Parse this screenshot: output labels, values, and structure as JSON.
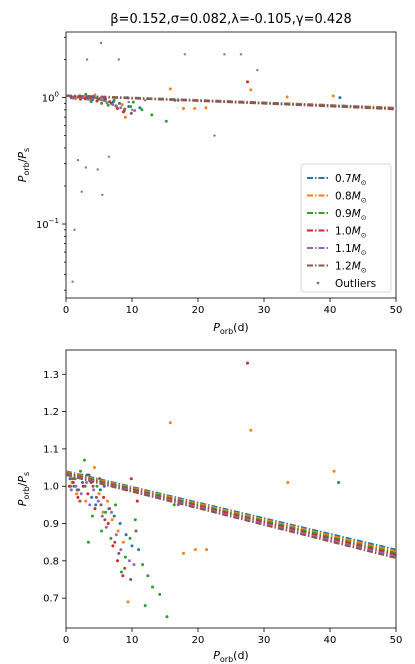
{
  "chart_data": [
    {
      "type": "line",
      "title": "β=0.152,σ=0.082,λ=-0.105,γ=0.428",
      "xlabel_main": "P",
      "xlabel_sub": "orb",
      "xlabel_unit": "(d)",
      "ylabel_num": "P",
      "ylabel_num_sub": "orb",
      "ylabel_sep": "/",
      "ylabel_den": "P",
      "ylabel_den_sub": "s",
      "xlim": [
        0,
        50
      ],
      "ylim": [
        0.026,
        3.3
      ],
      "yscale": "log",
      "grid": false,
      "legend_placement": "lower-right",
      "xticks": [
        0,
        10,
        20,
        30,
        40,
        50
      ],
      "yticks": [
        {
          "value": 0.1,
          "base": "10",
          "exp": "−1"
        },
        {
          "value": 1.0,
          "base": "10",
          "exp": "0"
        }
      ],
      "series": [
        {
          "name": "0.7",
          "unit": "M",
          "unit_sub": "⊙",
          "color": "#1f77b4",
          "style": "dashdot",
          "curve": {
            "a": 1.04,
            "b": 0.0042
          }
        },
        {
          "name": "0.8",
          "unit": "M",
          "unit_sub": "⊙",
          "color": "#ff7f0e",
          "style": "dashdot",
          "curve": {
            "a": 1.038,
            "b": 0.00425
          }
        },
        {
          "name": "0.9",
          "unit": "M",
          "unit_sub": "⊙",
          "color": "#2ca02c",
          "style": "dashdot",
          "curve": {
            "a": 1.036,
            "b": 0.0043
          }
        },
        {
          "name": "1.0",
          "unit": "M",
          "unit_sub": "⊙",
          "color": "#d62728",
          "style": "dashdot",
          "curve": {
            "a": 1.034,
            "b": 0.00435
          }
        },
        {
          "name": "1.1",
          "unit": "M",
          "unit_sub": "⊙",
          "color": "#9467bd",
          "style": "dashdot",
          "curve": {
            "a": 1.032,
            "b": 0.0044
          }
        },
        {
          "name": "1.2",
          "unit": "M",
          "unit_sub": "⊙",
          "color": "#8c564b",
          "style": "dashdot",
          "curve": {
            "a": 1.03,
            "b": 0.00445
          }
        },
        {
          "name": "Outliers",
          "color": "#7f7f7f",
          "style": "points",
          "points": [
            [
              1.0,
              0.035
            ],
            [
              1.3,
              0.09
            ],
            [
              1.8,
              0.32
            ],
            [
              2.4,
              0.18
            ],
            [
              3.0,
              0.28
            ],
            [
              3.2,
              2.0
            ],
            [
              4.8,
              0.27
            ],
            [
              5.3,
              2.7
            ],
            [
              5.5,
              0.17
            ],
            [
              6.5,
              0.34
            ],
            [
              7.5,
              0.85
            ],
            [
              8.0,
              2.0
            ],
            [
              10.0,
              0.8
            ],
            [
              18.0,
              2.2
            ],
            [
              22.5,
              0.5
            ],
            [
              24.0,
              2.2
            ],
            [
              26.5,
              2.2
            ],
            [
              29.0,
              1.65
            ],
            [
              12.0,
              0.95
            ],
            [
              9.5,
              0.92
            ]
          ]
        }
      ],
      "scatter": [
        {
          "color": "#1f77b4",
          "points": [
            [
              1.0,
              1.01
            ],
            [
              2.3,
              0.99
            ],
            [
              3.4,
              1.02
            ],
            [
              4.0,
              0.96
            ],
            [
              5.1,
              0.98
            ],
            [
              6.0,
              0.97
            ],
            [
              7.2,
              0.93
            ],
            [
              8.1,
              0.9
            ],
            [
              9.5,
              0.85
            ],
            [
              11.2,
              0.83
            ],
            [
              41.5,
              1.0
            ]
          ]
        },
        {
          "color": "#ff7f0e",
          "points": [
            [
              1.5,
              0.98
            ],
            [
              2.7,
              1.02
            ],
            [
              3.6,
              0.97
            ],
            [
              4.4,
              1.05
            ],
            [
              5.6,
              0.95
            ],
            [
              6.7,
              0.92
            ],
            [
              8.5,
              0.88
            ],
            [
              9.0,
              0.7
            ],
            [
              15.8,
              1.17
            ],
            [
              17.8,
              0.82
            ],
            [
              19.5,
              0.82
            ],
            [
              21.2,
              0.83
            ],
            [
              28.0,
              1.15
            ],
            [
              33.5,
              1.01
            ],
            [
              40.5,
              1.03
            ]
          ]
        },
        {
          "color": "#2ca02c",
          "points": [
            [
              1.2,
              1.0
            ],
            [
              2.1,
              1.03
            ],
            [
              3.0,
              1.06
            ],
            [
              3.8,
              0.93
            ],
            [
              4.6,
              1.0
            ],
            [
              5.4,
              0.9
            ],
            [
              6.4,
              0.87
            ],
            [
              7.3,
              0.95
            ],
            [
              8.8,
              0.78
            ],
            [
              9.8,
              0.85
            ],
            [
              10.2,
              0.92
            ],
            [
              11.5,
              0.8
            ],
            [
              13.0,
              0.73
            ],
            [
              15.2,
              0.65
            ],
            [
              16.5,
              0.95
            ]
          ]
        },
        {
          "color": "#d62728",
          "points": [
            [
              0.8,
              1.0
            ],
            [
              1.9,
              1.01
            ],
            [
              2.9,
              0.98
            ],
            [
              3.7,
              1.0
            ],
            [
              4.7,
              0.94
            ],
            [
              5.8,
              0.99
            ],
            [
              6.9,
              0.9
            ],
            [
              7.8,
              0.82
            ],
            [
              8.7,
              0.77
            ],
            [
              9.3,
              1.0
            ],
            [
              27.5,
              1.33
            ]
          ]
        },
        {
          "color": "#9467bd",
          "points": [
            [
              1.1,
              0.99
            ],
            [
              2.5,
              1.0
            ],
            [
              3.3,
              0.97
            ],
            [
              4.2,
              0.99
            ],
            [
              5.3,
              0.96
            ],
            [
              6.2,
              0.91
            ],
            [
              7.1,
              0.88
            ],
            [
              8.3,
              0.83
            ],
            [
              10.4,
              0.79
            ],
            [
              17.0,
              0.95
            ]
          ]
        },
        {
          "color": "#8c564b",
          "points": [
            [
              1.4,
              1.02
            ],
            [
              2.2,
              0.97
            ],
            [
              3.1,
              1.0
            ],
            [
              4.1,
              1.02
            ],
            [
              4.9,
              0.97
            ],
            [
              5.9,
              0.95
            ],
            [
              6.6,
              0.93
            ],
            [
              7.6,
              0.86
            ],
            [
              8.9,
              0.81
            ],
            [
              9.9,
              0.75
            ]
          ]
        }
      ]
    },
    {
      "type": "line",
      "xlabel_main": "P",
      "xlabel_sub": "orb",
      "xlabel_unit": "(d)",
      "ylabel_num": "P",
      "ylabel_num_sub": "orb",
      "ylabel_sep": "/",
      "ylabel_den": "P",
      "ylabel_den_sub": "s",
      "xlim": [
        0,
        50
      ],
      "ylim": [
        0.62,
        1.365
      ],
      "yscale": "linear",
      "grid": false,
      "xticks": [
        0,
        10,
        20,
        30,
        40,
        50
      ],
      "yticks": [
        0.7,
        0.8,
        0.9,
        1.0,
        1.1,
        1.2,
        1.3
      ],
      "series": [
        {
          "name": "0.7",
          "color": "#1f77b4",
          "style": "dashdot",
          "curve": {
            "a": 1.04,
            "b": 0.0042
          }
        },
        {
          "name": "0.8",
          "color": "#ff7f0e",
          "style": "dashdot",
          "curve": {
            "a": 1.038,
            "b": 0.00425
          }
        },
        {
          "name": "0.9",
          "color": "#2ca02c",
          "style": "dashdot",
          "curve": {
            "a": 1.036,
            "b": 0.0043
          }
        },
        {
          "name": "1.0",
          "color": "#d62728",
          "style": "dashdot",
          "curve": {
            "a": 1.034,
            "b": 0.00435
          }
        },
        {
          "name": "1.1",
          "color": "#9467bd",
          "style": "dashdot",
          "curve": {
            "a": 1.032,
            "b": 0.0044
          }
        },
        {
          "name": "1.2",
          "color": "#8c564b",
          "style": "dashdot",
          "curve": {
            "a": 1.03,
            "b": 0.00445
          }
        }
      ],
      "scatter": [
        {
          "color": "#1f77b4",
          "points": [
            [
              0.6,
              1.02
            ],
            [
              1.2,
              1.0
            ],
            [
              1.9,
              0.99
            ],
            [
              2.5,
              1.01
            ],
            [
              3.2,
              1.03
            ],
            [
              3.9,
              0.97
            ],
            [
              4.5,
              0.95
            ],
            [
              5.2,
              0.99
            ],
            [
              5.8,
              1.0
            ],
            [
              6.5,
              0.94
            ],
            [
              7.3,
              0.92
            ],
            [
              8.2,
              0.9
            ],
            [
              9.1,
              0.87
            ],
            [
              10.0,
              0.84
            ],
            [
              11.0,
              0.83
            ],
            [
              41.3,
              1.01
            ]
          ]
        },
        {
          "color": "#ff7f0e",
          "points": [
            [
              0.9,
              1.01
            ],
            [
              1.6,
              0.98
            ],
            [
              2.4,
              1.03
            ],
            [
              3.0,
              0.96
            ],
            [
              3.7,
              1.02
            ],
            [
              4.3,
              1.05
            ],
            [
              5.0,
              0.98
            ],
            [
              5.6,
              0.93
            ],
            [
              6.3,
              0.96
            ],
            [
              7.0,
              0.91
            ],
            [
              7.9,
              0.88
            ],
            [
              8.7,
              0.85
            ],
            [
              9.4,
              0.69
            ],
            [
              15.8,
              1.17
            ],
            [
              17.8,
              0.82
            ],
            [
              19.6,
              0.83
            ],
            [
              21.3,
              0.83
            ],
            [
              28.0,
              1.15
            ],
            [
              33.6,
              1.01
            ],
            [
              40.6,
              1.04
            ]
          ]
        },
        {
          "color": "#2ca02c",
          "points": [
            [
              0.7,
              1.0
            ],
            [
              1.4,
              1.02
            ],
            [
              2.2,
              1.04
            ],
            [
              2.8,
              1.07
            ],
            [
              3.4,
              0.85
            ],
            [
              4.0,
              0.92
            ],
            [
              4.7,
              1.0
            ],
            [
              5.4,
              0.88
            ],
            [
              6.0,
              0.93
            ],
            [
              6.8,
              0.86
            ],
            [
              7.5,
              0.95
            ],
            [
              8.4,
              0.77
            ],
            [
              9.0,
              0.81
            ],
            [
              9.7,
              0.86
            ],
            [
              10.5,
              0.91
            ],
            [
              11.6,
              0.79
            ],
            [
              12.4,
              0.76
            ],
            [
              13.1,
              0.73
            ],
            [
              14.2,
              0.71
            ],
            [
              15.3,
              0.65
            ],
            [
              16.4,
              0.95
            ],
            [
              12.0,
              0.68
            ]
          ]
        },
        {
          "color": "#d62728",
          "points": [
            [
              0.5,
              1.0
            ],
            [
              1.1,
              1.01
            ],
            [
              1.8,
              0.97
            ],
            [
              2.6,
              1.0
            ],
            [
              3.3,
              0.98
            ],
            [
              3.8,
              1.01
            ],
            [
              4.4,
              0.94
            ],
            [
              5.1,
              1.02
            ],
            [
              5.7,
              0.97
            ],
            [
              6.4,
              0.9
            ],
            [
              7.1,
              0.84
            ],
            [
              7.8,
              0.8
            ],
            [
              8.6,
              0.76
            ],
            [
              9.2,
              0.99
            ],
            [
              9.9,
              1.02
            ],
            [
              10.8,
              0.96
            ],
            [
              27.5,
              1.33
            ]
          ]
        },
        {
          "color": "#9467bd",
          "points": [
            [
              0.8,
              0.99
            ],
            [
              1.5,
              1.0
            ],
            [
              2.3,
              0.98
            ],
            [
              3.1,
              1.01
            ],
            [
              3.6,
              0.95
            ],
            [
              4.2,
              0.99
            ],
            [
              4.9,
              0.96
            ],
            [
              5.5,
              0.92
            ],
            [
              6.1,
              0.89
            ],
            [
              6.9,
              0.93
            ],
            [
              7.6,
              0.87
            ],
            [
              8.3,
              0.83
            ],
            [
              9.6,
              0.8
            ],
            [
              10.3,
              0.79
            ],
            [
              17.0,
              0.95
            ]
          ]
        },
        {
          "color": "#8c564b",
          "points": [
            [
              1.0,
              1.02
            ],
            [
              1.7,
              0.99
            ],
            [
              2.1,
              0.96
            ],
            [
              2.9,
              1.0
            ],
            [
              3.5,
              1.03
            ],
            [
              4.1,
              1.0
            ],
            [
              4.6,
              0.97
            ],
            [
              5.3,
              0.95
            ],
            [
              5.9,
              0.91
            ],
            [
              6.6,
              0.94
            ],
            [
              7.4,
              0.85
            ],
            [
              8.0,
              0.82
            ],
            [
              8.9,
              0.78
            ],
            [
              9.8,
              0.75
            ],
            [
              10.6,
              0.88
            ]
          ]
        }
      ]
    }
  ]
}
